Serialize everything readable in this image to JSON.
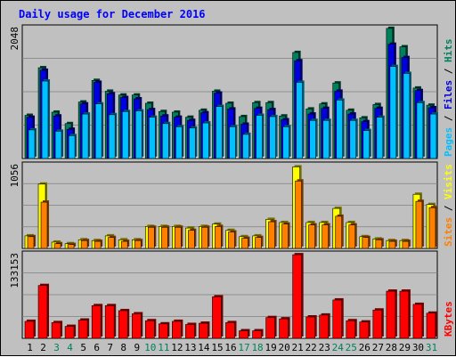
{
  "title": "Daily usage for December 2016",
  "colors": {
    "background": "#c0c0c0",
    "panel": "#c0c0c0",
    "hits": "#00805c",
    "files": "#0000e0",
    "pages": "#00c0ff",
    "visits": "#ffff00",
    "sites": "#ff8000",
    "kbytes": "#ff0000",
    "weekday_label": "#000000",
    "weekend_label": "#00805c",
    "title": "#0000ff"
  },
  "chart_data": [
    {
      "type": "bar",
      "name": "hits-files-pages",
      "y_max_label": "2048",
      "ylim": [
        0,
        2048
      ],
      "legend": [
        {
          "label": "Pages",
          "color": "#00c0ff"
        },
        {
          "label": " / ",
          "color": "#000000"
        },
        {
          "label": "Files",
          "color": "#0000e0"
        },
        {
          "label": " / ",
          "color": "#000000"
        },
        {
          "label": "Hits",
          "color": "#00805c"
        }
      ],
      "categories": [
        "1",
        "2",
        "3",
        "4",
        "5",
        "6",
        "7",
        "8",
        "9",
        "10",
        "11",
        "12",
        "13",
        "14",
        "15",
        "16",
        "17",
        "18",
        "19",
        "20",
        "21",
        "22",
        "23",
        "24",
        "25",
        "26",
        "27",
        "28",
        "29",
        "30",
        "31"
      ],
      "series": [
        {
          "name": "Hits",
          "values": [
            680,
            1430,
            730,
            550,
            890,
            1230,
            1060,
            1000,
            1000,
            870,
            740,
            730,
            650,
            760,
            1060,
            870,
            660,
            880,
            880,
            670,
            1670,
            780,
            860,
            1190,
            760,
            640,
            850,
            2050,
            1760,
            1110,
            840
          ]
        },
        {
          "name": "Files",
          "values": [
            650,
            1390,
            670,
            460,
            860,
            1200,
            1020,
            960,
            940,
            770,
            670,
            650,
            600,
            720,
            1030,
            780,
            540,
            790,
            770,
            610,
            1540,
            700,
            790,
            1060,
            700,
            580,
            790,
            1800,
            1590,
            1070,
            800
          ]
        },
        {
          "name": "Pages",
          "values": [
            450,
            1220,
            430,
            360,
            700,
            860,
            690,
            740,
            750,
            650,
            550,
            500,
            480,
            560,
            820,
            500,
            380,
            680,
            660,
            500,
            1200,
            600,
            600,
            920,
            600,
            440,
            650,
            1450,
            1340,
            880,
            700
          ]
        }
      ]
    },
    {
      "type": "bar",
      "name": "visits-sites",
      "y_max_label": "1056",
      "ylim": [
        0,
        1056
      ],
      "legend": [
        {
          "label": "Sites",
          "color": "#ff8000"
        },
        {
          "label": " / ",
          "color": "#000000"
        },
        {
          "label": "Visits",
          "color": "#ffff00"
        }
      ],
      "categories": [
        "1",
        "2",
        "3",
        "4",
        "5",
        "6",
        "7",
        "8",
        "9",
        "10",
        "11",
        "12",
        "13",
        "14",
        "15",
        "16",
        "17",
        "18",
        "19",
        "20",
        "21",
        "22",
        "23",
        "24",
        "25",
        "26",
        "27",
        "28",
        "29",
        "30",
        "31"
      ],
      "series": [
        {
          "name": "Visits",
          "values": [
            160,
            820,
            80,
            60,
            110,
            100,
            160,
            110,
            110,
            280,
            280,
            280,
            260,
            280,
            310,
            230,
            150,
            160,
            370,
            330,
            1040,
            330,
            330,
            510,
            330,
            150,
            120,
            100,
            100,
            690,
            560
          ]
        },
        {
          "name": "Sites",
          "values": [
            150,
            590,
            60,
            50,
            100,
            90,
            140,
            90,
            100,
            270,
            270,
            270,
            230,
            270,
            280,
            210,
            130,
            140,
            340,
            310,
            860,
            300,
            300,
            410,
            300,
            140,
            110,
            90,
            90,
            600,
            520
          ]
        }
      ]
    },
    {
      "type": "bar",
      "name": "kbytes",
      "y_max_label": "133153",
      "ylim": [
        0,
        133153
      ],
      "legend": [
        {
          "label": "KBytes",
          "color": "#ff0000"
        }
      ],
      "categories": [
        "1",
        "2",
        "3",
        "4",
        "5",
        "6",
        "7",
        "8",
        "9",
        "10",
        "11",
        "12",
        "13",
        "14",
        "15",
        "16",
        "17",
        "18",
        "19",
        "20",
        "21",
        "22",
        "23",
        "24",
        "25",
        "26",
        "27",
        "28",
        "29",
        "30",
        "31"
      ],
      "series": [
        {
          "name": "KBytes",
          "values": [
            27000,
            84000,
            25000,
            19000,
            29000,
            52000,
            52000,
            44000,
            39000,
            28000,
            23000,
            27000,
            22000,
            24000,
            66000,
            25000,
            12000,
            12000,
            33000,
            31000,
            133000,
            34000,
            37000,
            61000,
            28000,
            26000,
            45000,
            75000,
            75000,
            54000,
            40000
          ]
        }
      ]
    }
  ],
  "x_labels": [
    {
      "label": "1",
      "weekend": false
    },
    {
      "label": "2",
      "weekend": false
    },
    {
      "label": "3",
      "weekend": true
    },
    {
      "label": "4",
      "weekend": true
    },
    {
      "label": "5",
      "weekend": false
    },
    {
      "label": "6",
      "weekend": false
    },
    {
      "label": "7",
      "weekend": false
    },
    {
      "label": "8",
      "weekend": false
    },
    {
      "label": "9",
      "weekend": false
    },
    {
      "label": "10",
      "weekend": true
    },
    {
      "label": "11",
      "weekend": true
    },
    {
      "label": "12",
      "weekend": false
    },
    {
      "label": "13",
      "weekend": false
    },
    {
      "label": "14",
      "weekend": false
    },
    {
      "label": "15",
      "weekend": false
    },
    {
      "label": "16",
      "weekend": false
    },
    {
      "label": "17",
      "weekend": true
    },
    {
      "label": "18",
      "weekend": true
    },
    {
      "label": "19",
      "weekend": false
    },
    {
      "label": "20",
      "weekend": false
    },
    {
      "label": "21",
      "weekend": false
    },
    {
      "label": "22",
      "weekend": false
    },
    {
      "label": "23",
      "weekend": false
    },
    {
      "label": "24",
      "weekend": true
    },
    {
      "label": "25",
      "weekend": true
    },
    {
      "label": "26",
      "weekend": false
    },
    {
      "label": "27",
      "weekend": false
    },
    {
      "label": "28",
      "weekend": false
    },
    {
      "label": "29",
      "weekend": false
    },
    {
      "label": "30",
      "weekend": false
    },
    {
      "label": "31",
      "weekend": true
    }
  ]
}
